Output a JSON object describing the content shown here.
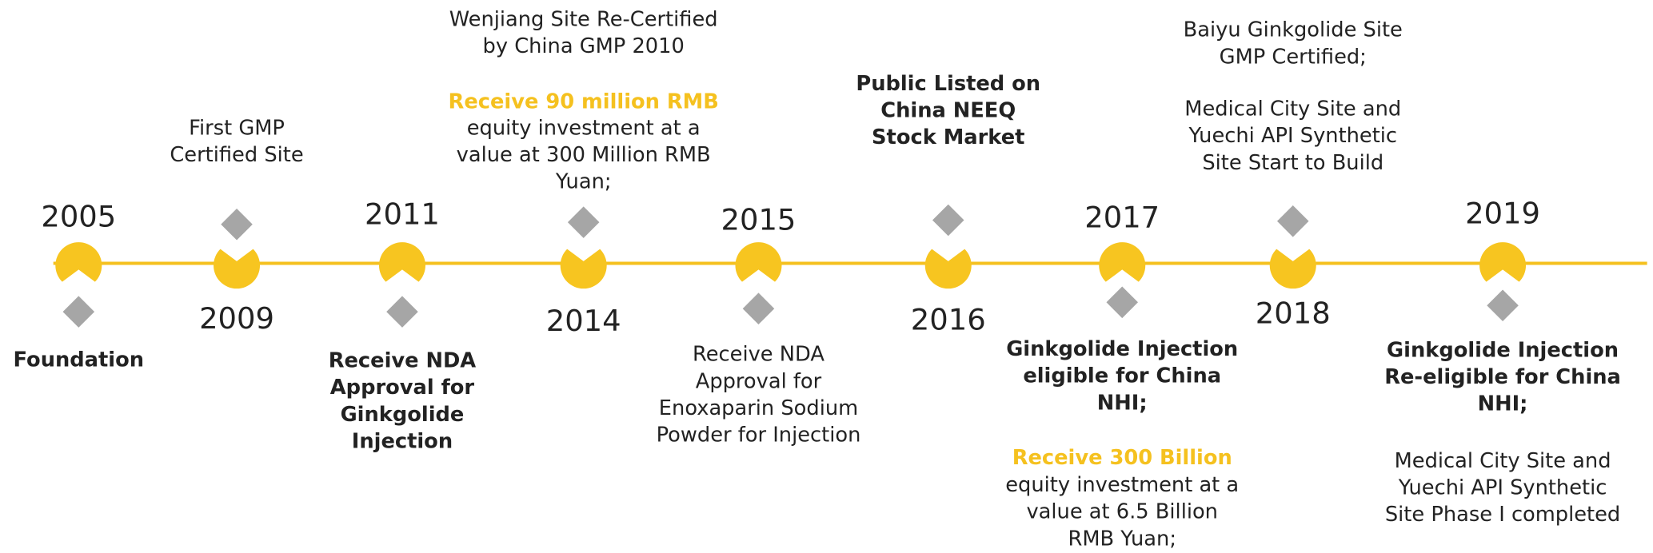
{
  "milestones": [
    {
      "year": "2005",
      "blocks": [
        {
          "style": "bold",
          "lines": [
            "Foundation"
          ]
        }
      ]
    },
    {
      "year": "2009",
      "blocks": [
        {
          "style": "normal",
          "lines": [
            "First GMP",
            "Certified Site"
          ]
        }
      ]
    },
    {
      "year": "2011",
      "blocks": [
        {
          "style": "bold",
          "lines": [
            "Receive NDA",
            "Approval for",
            "Ginkgolide",
            "Injection"
          ]
        }
      ]
    },
    {
      "year": "2014",
      "blocks": [
        {
          "style": "normal",
          "lines": [
            "Wenjiang Site Re-Certified",
            "by China GMP 2010"
          ]
        },
        {
          "style": "highlight",
          "lines": [
            "Receive 90 million RMB"
          ]
        },
        {
          "style": "normal",
          "lines": [
            "equity investment at a",
            "value at 300 Million RMB",
            "Yuan;"
          ]
        }
      ]
    },
    {
      "year": "2015",
      "blocks": [
        {
          "style": "normal",
          "lines": [
            "Receive NDA",
            "Approval for",
            "Enoxaparin Sodium",
            "Powder for Injection"
          ]
        }
      ]
    },
    {
      "year": "2016",
      "blocks": [
        {
          "style": "bold",
          "lines": [
            "Public Listed on",
            "China NEEQ",
            "Stock Market"
          ]
        }
      ]
    },
    {
      "year": "2017",
      "blocks": [
        {
          "style": "bold",
          "lines": [
            "Ginkgolide Injection",
            "eligible for China",
            "NHI;"
          ]
        },
        {
          "style": "highlight",
          "lines": [
            "Receive 300 Billion"
          ]
        },
        {
          "style": "normal",
          "lines": [
            "equity investment at a",
            "value at 6.5 Billion",
            "RMB Yuan;"
          ]
        }
      ]
    },
    {
      "year": "2018",
      "blocks": [
        {
          "style": "normal",
          "lines": [
            "Baiyu Ginkgolide Site",
            "GMP Certified;"
          ]
        },
        {
          "style": "normal",
          "lines": [
            "Medical City Site and",
            "Yuechi API Synthetic",
            "Site Start to Build"
          ]
        }
      ]
    },
    {
      "year": "2019",
      "blocks": [
        {
          "style": "bold",
          "lines": [
            "Ginkgolide Injection",
            "Re-eligible for China",
            "NHI;"
          ]
        },
        {
          "style": "normal",
          "lines": [
            "Medical City Site and",
            "Yuechi API Synthetic",
            "Site Phase I completed"
          ]
        }
      ]
    }
  ]
}
